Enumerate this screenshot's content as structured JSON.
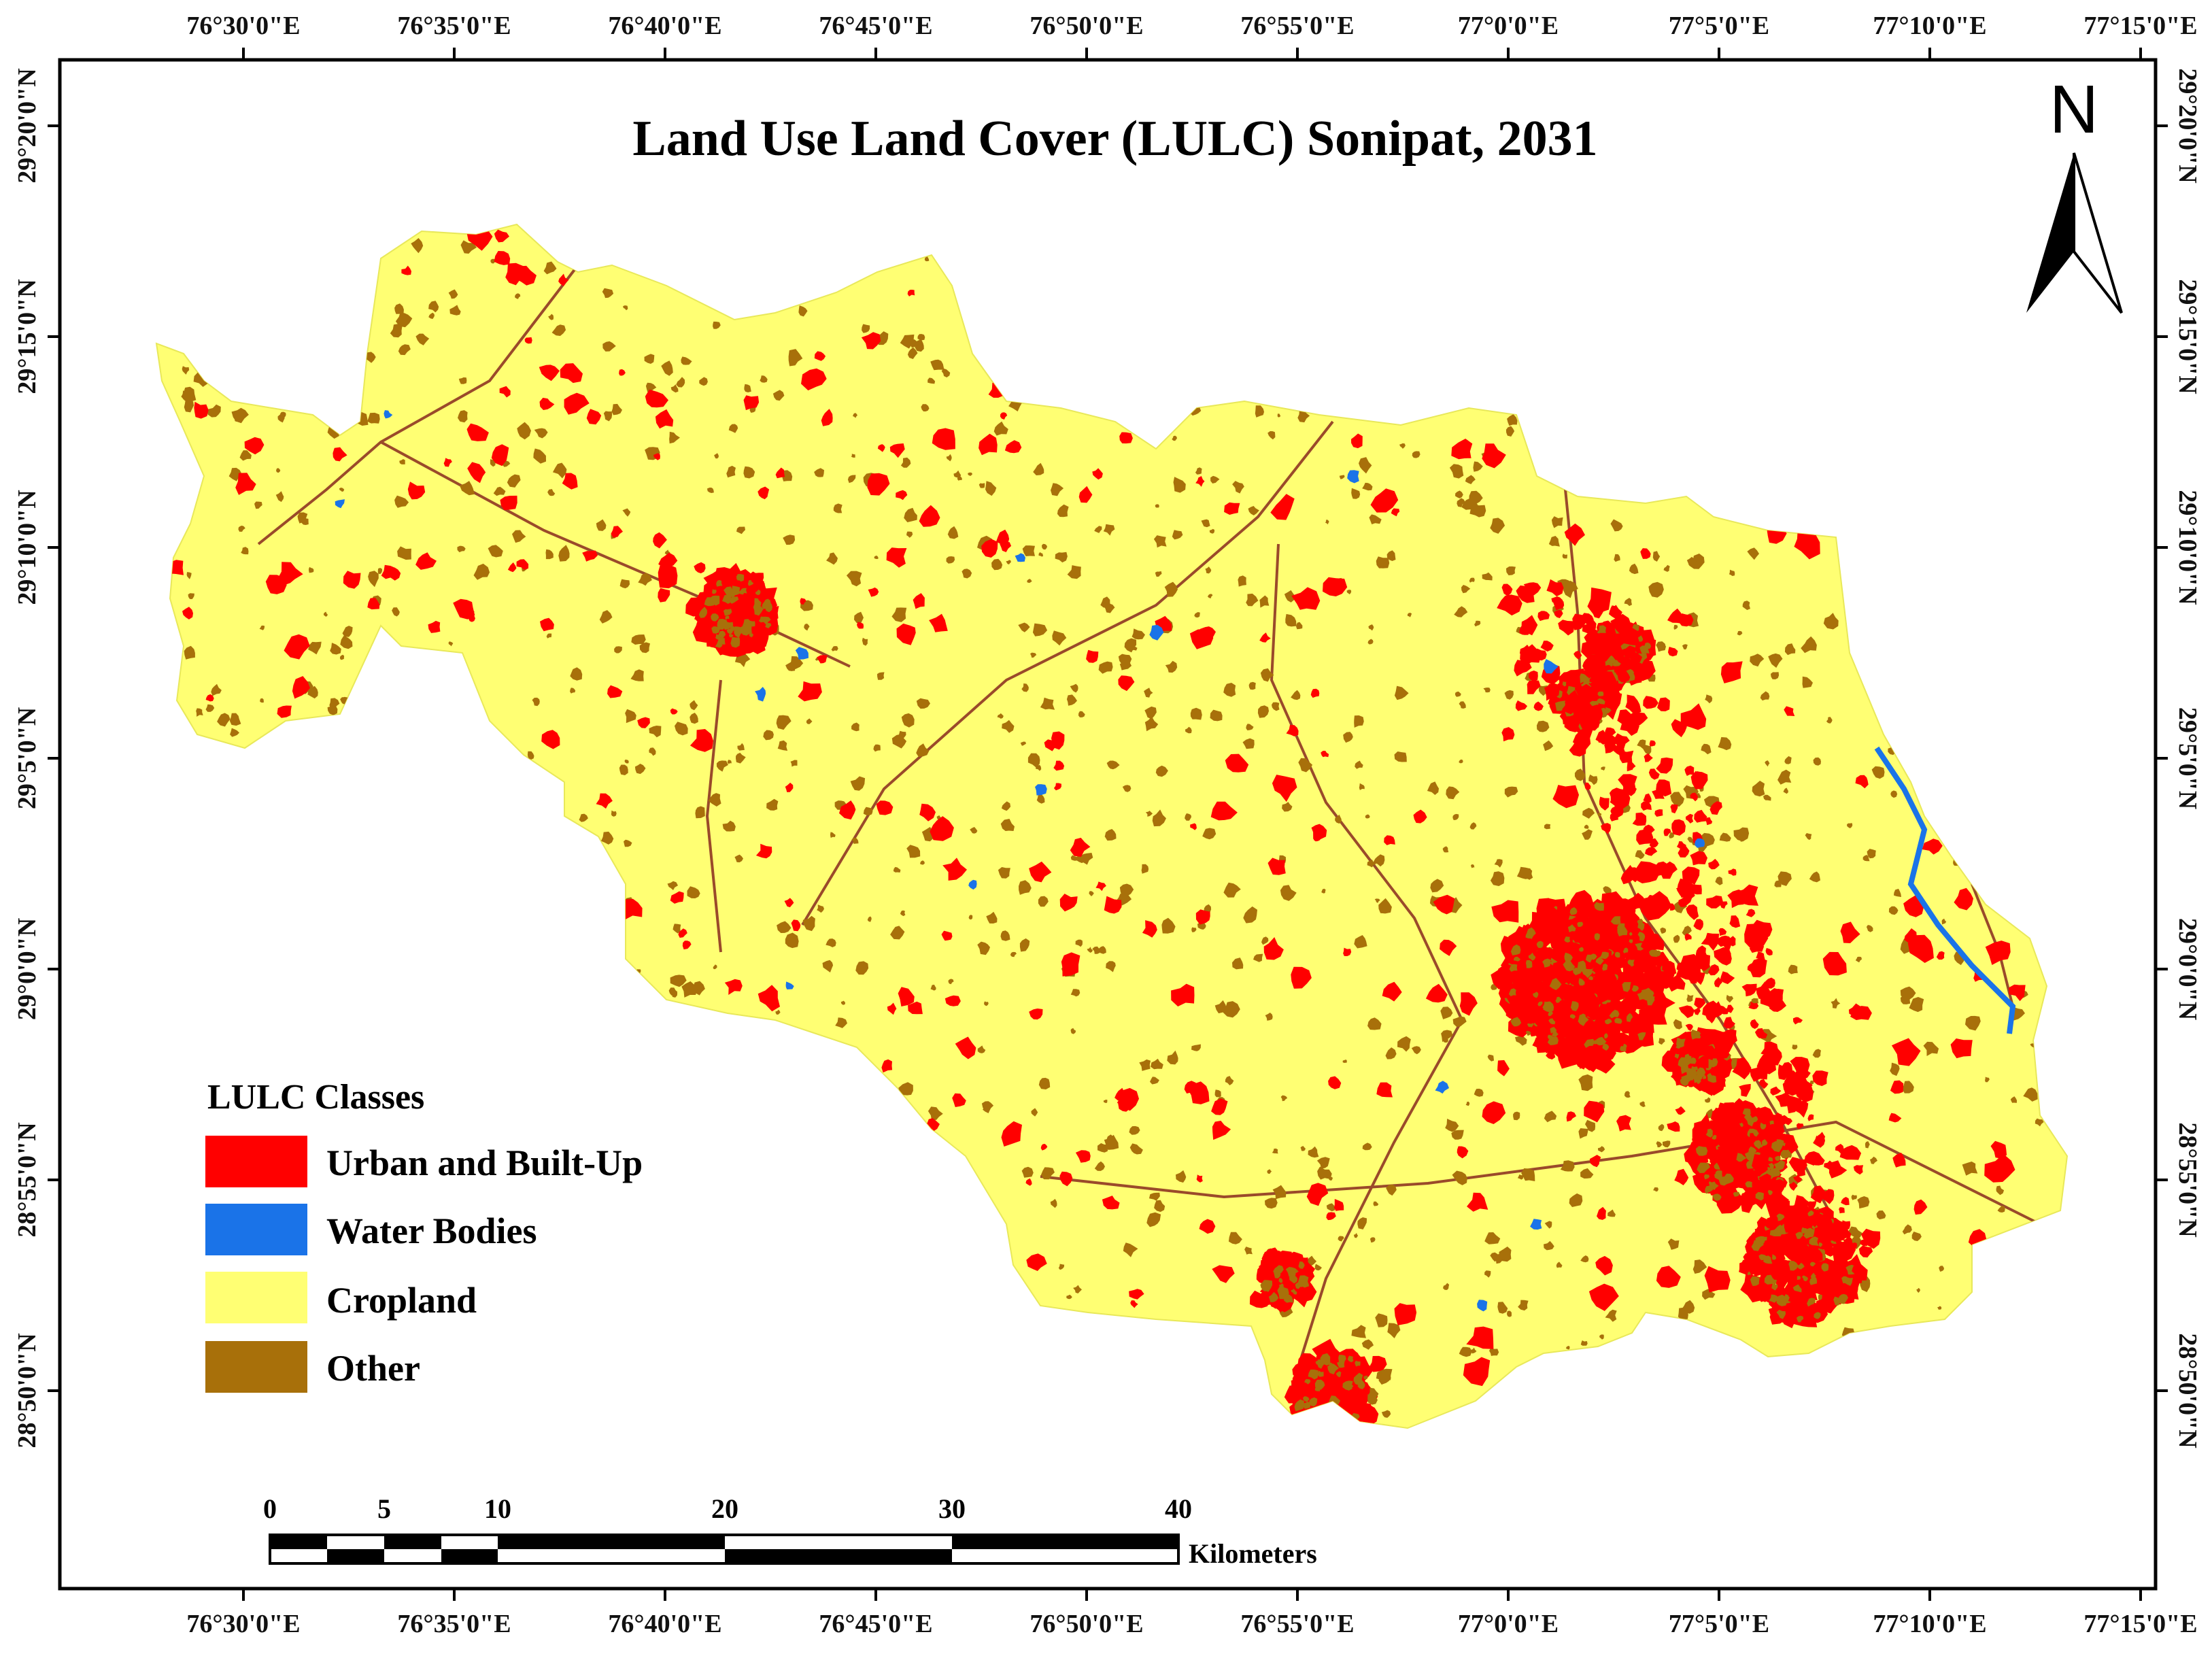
{
  "title": "Land Use Land Cover (LULC) Sonipat, 2031",
  "north_arrow": {
    "label": "N"
  },
  "graticule": {
    "longitude_labels": [
      "76°30'0\"E",
      "76°35'0\"E",
      "76°40'0\"E",
      "76°45'0\"E",
      "76°50'0\"E",
      "76°55'0\"E",
      "77°0'0\"E",
      "77°5'0\"E",
      "77°10'0\"E",
      "77°15'0\"E"
    ],
    "latitude_labels": [
      "29°20'0\"N",
      "29°15'0\"N",
      "29°10'0\"N",
      "29°5'0\"N",
      "29°0'0\"N",
      "28°55'0\"N",
      "28°50'0\"N"
    ]
  },
  "legend": {
    "title": "LULC Classes",
    "items": [
      {
        "label": "Urban and Built-Up",
        "color": "#ff0000"
      },
      {
        "label": "Water Bodies",
        "color": "#1a73e8"
      },
      {
        "label": "Cropland",
        "color": "#ffff73"
      },
      {
        "label": "Other",
        "color": "#a8700a"
      }
    ]
  },
  "scale_bar": {
    "tick_labels": [
      "0",
      "5",
      "10",
      "20",
      "30",
      "40"
    ],
    "units": "Kilometers"
  },
  "colors": {
    "urban": "#ff0000",
    "water": "#1a73e8",
    "cropland": "#ffff73",
    "other": "#a8700a",
    "road": "#9a4a2a"
  }
}
